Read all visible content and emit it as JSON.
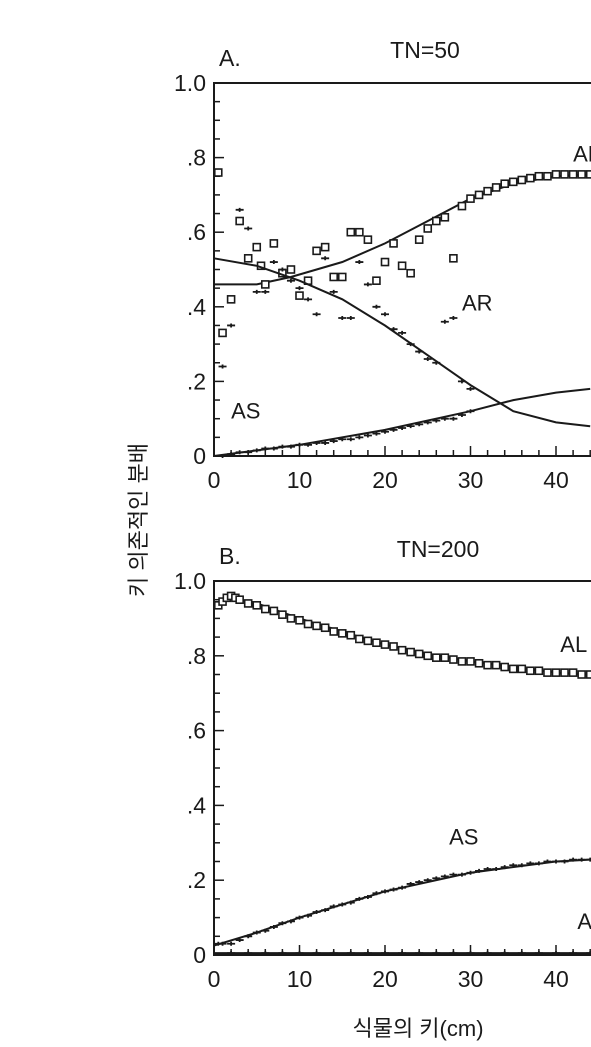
{
  "y_axis_title": "키 의존적인 분배",
  "x_axis_title": "식물의 키(cm)",
  "colors": {
    "ink": "#1a1a1a",
    "background": "#ffffff"
  },
  "chart_data": [
    {
      "type": "scatter",
      "panel_label": "A.",
      "title": "TN=50",
      "xlabel": "식물의 키(cm)",
      "ylabel": "키 의존적인 분배",
      "xlim": [
        0,
        44
      ],
      "ylim": [
        0,
        1.0
      ],
      "x_ticks": [
        0,
        10,
        20,
        30,
        40
      ],
      "x_tick_labels": [
        "0",
        "10",
        "20",
        "30",
        "40"
      ],
      "y_ticks": [
        0,
        0.2,
        0.4,
        0.6,
        0.8,
        1.0
      ],
      "y_tick_labels": [
        "0",
        ".2",
        ".4",
        ".6",
        ".8",
        "1.0"
      ],
      "series": [
        {
          "name": "AL",
          "label_text": "AL",
          "label_at": [
            42,
            0.79
          ],
          "marker": "square",
          "line": {
            "x": [
              0,
              5,
              9,
              15,
              20,
              25,
              30,
              35,
              40,
              44
            ],
            "y": [
              0.46,
              0.46,
              0.48,
              0.52,
              0.57,
              0.63,
              0.69,
              0.73,
              0.75,
              0.755
            ]
          },
          "points": {
            "x": [
              0.5,
              1,
              2,
              3,
              4,
              5,
              5.5,
              6,
              7,
              8,
              9,
              10,
              11,
              12,
              13,
              14,
              15,
              16,
              17,
              18,
              19,
              20,
              21,
              22,
              23,
              24,
              25,
              26,
              27,
              28,
              29,
              30,
              31,
              32,
              33,
              34,
              35,
              36,
              37,
              38,
              39,
              40,
              41,
              42,
              43,
              44
            ],
            "y": [
              0.76,
              0.33,
              0.42,
              0.63,
              0.53,
              0.56,
              0.51,
              0.46,
              0.57,
              0.49,
              0.5,
              0.43,
              0.47,
              0.55,
              0.56,
              0.48,
              0.48,
              0.6,
              0.6,
              0.58,
              0.47,
              0.52,
              0.57,
              0.51,
              0.49,
              0.58,
              0.61,
              0.63,
              0.64,
              0.53,
              0.67,
              0.69,
              0.7,
              0.71,
              0.72,
              0.73,
              0.735,
              0.74,
              0.745,
              0.75,
              0.75,
              0.755,
              0.755,
              0.755,
              0.755,
              0.755
            ]
          }
        },
        {
          "name": "AR",
          "label_text": "AR",
          "label_at": [
            29,
            0.39
          ],
          "marker": "plus",
          "line": {
            "x": [
              0,
              5,
              10,
              15,
              20,
              25,
              30,
              35,
              40,
              44
            ],
            "y": [
              0.53,
              0.51,
              0.47,
              0.42,
              0.35,
              0.27,
              0.19,
              0.12,
              0.09,
              0.08
            ]
          },
          "points": {
            "x": [
              1,
              2,
              3,
              4,
              5,
              6,
              7,
              8,
              9,
              10,
              11,
              12,
              13,
              14,
              15,
              16,
              17,
              18,
              19,
              20,
              21,
              22,
              23,
              24,
              25,
              26,
              27,
              28,
              29,
              30
            ],
            "y": [
              0.24,
              0.35,
              0.66,
              0.61,
              0.44,
              0.44,
              0.52,
              0.5,
              0.47,
              0.45,
              0.42,
              0.38,
              0.53,
              0.44,
              0.37,
              0.37,
              0.52,
              0.46,
              0.4,
              0.38,
              0.34,
              0.33,
              0.3,
              0.28,
              0.26,
              0.25,
              0.36,
              0.37,
              0.2,
              0.18
            ]
          }
        },
        {
          "name": "AS",
          "label_text": "AS",
          "label_at": [
            2,
            0.1
          ],
          "marker": "plus",
          "line": {
            "x": [
              0,
              10,
              20,
              30,
              35,
              40,
              44
            ],
            "y": [
              0.0,
              0.03,
              0.07,
              0.12,
              0.15,
              0.17,
              0.18
            ]
          },
          "points": {
            "x": [
              1,
              2,
              3,
              4,
              5,
              6,
              7,
              8,
              9,
              10,
              11,
              12,
              13,
              14,
              15,
              16,
              17,
              18,
              19,
              20,
              21,
              22,
              23,
              24,
              25,
              26,
              27,
              28,
              29,
              30
            ],
            "y": [
              0.0,
              0.005,
              0.01,
              0.01,
              0.015,
              0.02,
              0.02,
              0.025,
              0.025,
              0.03,
              0.03,
              0.035,
              0.035,
              0.04,
              0.045,
              0.045,
              0.05,
              0.055,
              0.06,
              0.065,
              0.07,
              0.075,
              0.08,
              0.085,
              0.09,
              0.095,
              0.1,
              0.1,
              0.11,
              0.12
            ]
          }
        }
      ]
    },
    {
      "type": "scatter",
      "panel_label": "B.",
      "title": "TN=200",
      "xlabel": "식물의 키(cm)",
      "ylabel": "키 의존적인 분배",
      "xlim": [
        0,
        44
      ],
      "ylim": [
        0,
        1.0
      ],
      "x_ticks": [
        0,
        10,
        20,
        30,
        40
      ],
      "x_tick_labels": [
        "0",
        "10",
        "20",
        "30",
        "40"
      ],
      "y_ticks": [
        0,
        0.2,
        0.4,
        0.6,
        0.8,
        1.0
      ],
      "y_tick_labels": [
        "0",
        ".2",
        ".4",
        ".6",
        ".8",
        "1.0"
      ],
      "series": [
        {
          "name": "AL",
          "label_text": "AL",
          "label_at": [
            40.5,
            0.81
          ],
          "marker": "square",
          "line": {
            "x": [
              0,
              1,
              2,
              5,
              10,
              15,
              20,
              25,
              30,
              35,
              40,
              44
            ],
            "y": [
              0.935,
              0.95,
              0.955,
              0.94,
              0.9,
              0.865,
              0.83,
              0.805,
              0.785,
              0.77,
              0.755,
              0.75
            ]
          },
          "points": {
            "x": [
              0.5,
              1,
              1.5,
              2,
              2.5,
              3,
              4,
              5,
              6,
              7,
              8,
              9,
              10,
              11,
              12,
              13,
              14,
              15,
              16,
              17,
              18,
              19,
              20,
              21,
              22,
              23,
              24,
              25,
              26,
              27,
              28,
              29,
              30,
              31,
              32,
              33,
              34,
              35,
              36,
              37,
              38,
              39,
              40,
              41,
              42,
              43,
              44
            ],
            "y": [
              0.935,
              0.945,
              0.955,
              0.96,
              0.955,
              0.95,
              0.94,
              0.935,
              0.925,
              0.92,
              0.91,
              0.9,
              0.895,
              0.885,
              0.88,
              0.875,
              0.865,
              0.86,
              0.855,
              0.845,
              0.84,
              0.835,
              0.83,
              0.825,
              0.815,
              0.81,
              0.805,
              0.8,
              0.795,
              0.795,
              0.79,
              0.785,
              0.785,
              0.78,
              0.775,
              0.775,
              0.77,
              0.765,
              0.765,
              0.76,
              0.76,
              0.755,
              0.755,
              0.755,
              0.755,
              0.75,
              0.75
            ]
          }
        },
        {
          "name": "AS",
          "label_text": "AS",
          "label_at": [
            27.5,
            0.295
          ],
          "marker": "plus",
          "line": {
            "x": [
              0,
              5,
              10,
              20,
              30,
              40,
              44
            ],
            "y": [
              0.025,
              0.06,
              0.1,
              0.17,
              0.22,
              0.25,
              0.255
            ]
          },
          "points": {
            "x": [
              0.5,
              1,
              2,
              3,
              4,
              5,
              6,
              7,
              8,
              9,
              10,
              11,
              12,
              13,
              14,
              15,
              16,
              17,
              18,
              19,
              20,
              21,
              22,
              23,
              24,
              25,
              26,
              27,
              28,
              29,
              30,
              31,
              32,
              33,
              34,
              35,
              36,
              37,
              38,
              39,
              40,
              41,
              42,
              43,
              44
            ],
            "y": [
              0.03,
              0.03,
              0.03,
              0.04,
              0.05,
              0.06,
              0.065,
              0.075,
              0.085,
              0.09,
              0.1,
              0.105,
              0.115,
              0.12,
              0.13,
              0.135,
              0.14,
              0.15,
              0.155,
              0.165,
              0.17,
              0.175,
              0.18,
              0.19,
              0.195,
              0.2,
              0.205,
              0.21,
              0.215,
              0.215,
              0.22,
              0.225,
              0.23,
              0.23,
              0.235,
              0.24,
              0.24,
              0.245,
              0.245,
              0.25,
              0.25,
              0.25,
              0.255,
              0.255,
              0.255
            ]
          }
        },
        {
          "name": "AR",
          "label_text": "A",
          "label_at": [
            42.5,
            0.07
          ],
          "marker": "plus",
          "line": {
            "x": [
              0,
              10,
              20,
              30,
              40,
              44
            ],
            "y": [
              0.005,
              0.005,
              0.005,
              0.005,
              0.005,
              0.005
            ]
          },
          "points": {
            "x": [
              2,
              4,
              6,
              8,
              10,
              12,
              14,
              16,
              18,
              20,
              22,
              24,
              26,
              28,
              30,
              32,
              34,
              36,
              38,
              40,
              42,
              44
            ],
            "y": [
              0.005,
              0.005,
              0.005,
              0.005,
              0.005,
              0.005,
              0.005,
              0.005,
              0.005,
              0.005,
              0.005,
              0.005,
              0.005,
              0.005,
              0.005,
              0.005,
              0.005,
              0.005,
              0.005,
              0.005,
              0.005,
              0.005
            ]
          }
        }
      ]
    }
  ]
}
